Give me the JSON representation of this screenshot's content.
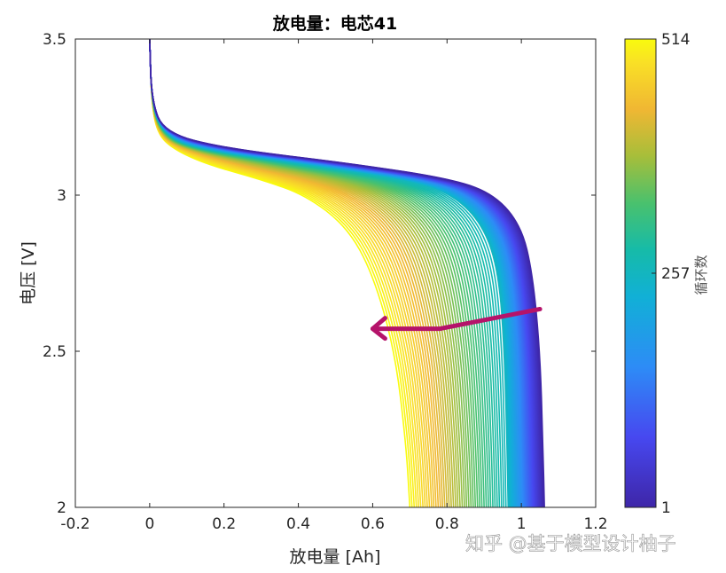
{
  "chart_data": {
    "type": "line",
    "title": "放电量：电芯41",
    "xlabel": "放电量 [Ah]",
    "ylabel": "电压 [V]",
    "xlim": [
      -0.2,
      1.2
    ],
    "ylim": [
      2,
      3.5
    ],
    "xticks": [
      "-0.2",
      "0",
      "0.2",
      "0.4",
      "0.6",
      "0.8",
      "1",
      "1.2"
    ],
    "yticks": [
      "2",
      "2.5",
      "3",
      "3.5"
    ],
    "grid": false,
    "colorbar": {
      "label": "循环数",
      "min": 1,
      "max": 514,
      "ticks": [
        "1",
        "257",
        "514"
      ],
      "colormap": "parula"
    },
    "voltage_points": [
      3.5,
      3.3,
      3.2,
      3.15,
      3.1,
      3.05,
      3.0,
      2.9,
      2.75,
      2.5,
      2.2,
      2.0
    ],
    "series": [
      {
        "cycle": 1,
        "capacity": [
          0,
          0.005,
          0.04,
          0.2,
          0.55,
          0.82,
          0.93,
          1.0,
          1.03,
          1.05,
          1.058,
          1.062
        ]
      },
      {
        "cycle": 257,
        "capacity": [
          0,
          0.005,
          0.035,
          0.12,
          0.42,
          0.7,
          0.82,
          0.9,
          0.94,
          0.955,
          0.962,
          0.965
        ]
      },
      {
        "cycle": 514,
        "capacity": [
          0,
          0.005,
          0.02,
          0.06,
          0.15,
          0.3,
          0.42,
          0.53,
          0.6,
          0.66,
          0.69,
          0.7
        ]
      }
    ],
    "annotation": {
      "type": "arrow",
      "color": "#b5136a",
      "points": [
        [
          1.05,
          2.635
        ],
        [
          0.9,
          2.6
        ],
        [
          0.78,
          2.572
        ],
        [
          0.6,
          2.572
        ]
      ]
    }
  },
  "watermark": "知乎 @基于模型设计柚子"
}
